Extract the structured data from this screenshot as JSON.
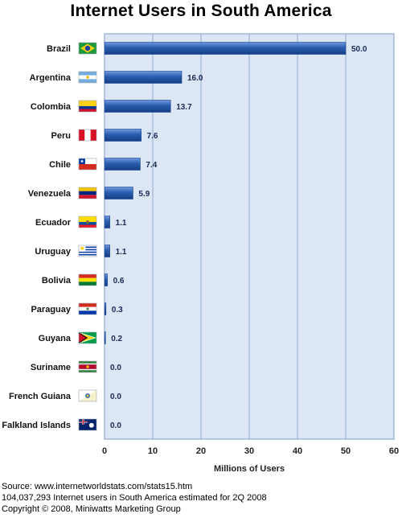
{
  "chart_data": {
    "type": "bar",
    "orientation": "horizontal",
    "title": "Internet Users in South America",
    "xlabel": "Millions of Users",
    "xlim": [
      0,
      60
    ],
    "xticks": [
      0,
      10,
      20,
      30,
      40,
      50,
      60
    ],
    "grid": true,
    "categories": [
      "Brazil",
      "Argentina",
      "Colombia",
      "Peru",
      "Chile",
      "Venezuela",
      "Ecuador",
      "Uruguay",
      "Bolivia",
      "Paraguay",
      "Guyana",
      "Suriname",
      "French Guiana",
      "Falkland Islands"
    ],
    "values": [
      50.0,
      16.0,
      13.7,
      7.6,
      7.4,
      5.9,
      1.1,
      1.1,
      0.6,
      0.3,
      0.2,
      0.0,
      0.0,
      0.0
    ],
    "value_labels": [
      "50.0",
      "16.0",
      "13.7",
      "7.6",
      "7.4",
      "5.9",
      "1.1",
      "1.1",
      "0.6",
      "0.3",
      "0.2",
      "0.0",
      "0.0",
      "0.0"
    ],
    "flag_icons": [
      "brazil-flag-icon",
      "argentina-flag-icon",
      "colombia-flag-icon",
      "peru-flag-icon",
      "chile-flag-icon",
      "venezuela-flag-icon",
      "ecuador-flag-icon",
      "uruguay-flag-icon",
      "bolivia-flag-icon",
      "paraguay-flag-icon",
      "guyana-flag-icon",
      "suriname-flag-icon",
      "french-guiana-flag-icon",
      "falkland-islands-flag-icon"
    ],
    "colors": {
      "bar": "#2a5db0",
      "bar_dark": "#153f85",
      "plot_background": "#dce6f4",
      "gridline": "#8fa9cf"
    }
  },
  "footer": {
    "source": "Source: www.internetworldstats.com/stats15.htm",
    "note": "104,037,293 Internet users in South America estimated for 2Q 2008",
    "copyright": "Copyright © 2008, Miniwatts Marketing Group"
  }
}
